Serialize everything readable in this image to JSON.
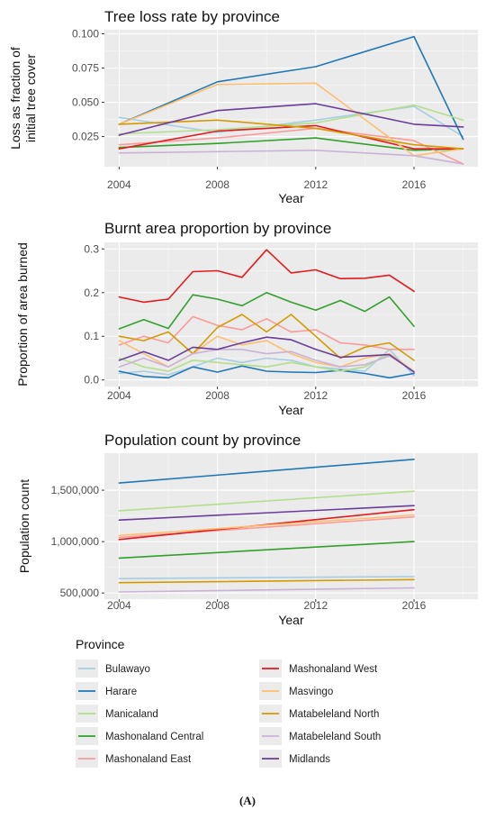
{
  "caption": "(A)",
  "legend": {
    "title": "Province",
    "items": [
      {
        "name": "Bulawayo",
        "color": "#a6cee3"
      },
      {
        "name": "Harare",
        "color": "#1f78b4"
      },
      {
        "name": "Manicaland",
        "color": "#b2df8a"
      },
      {
        "name": "Mashonaland Central",
        "color": "#33a02c"
      },
      {
        "name": "Mashonaland East",
        "color": "#fb9a99"
      },
      {
        "name": "Mashonaland West",
        "color": "#e31a1c"
      },
      {
        "name": "Masvingo",
        "color": "#fdbf6f"
      },
      {
        "name": "Matabeleland North",
        "color": "#d49a00"
      },
      {
        "name": "Matabeleland South",
        "color": "#cab2d6"
      },
      {
        "name": "Midlands",
        "color": "#6a3d9a"
      }
    ]
  },
  "chart_data": [
    {
      "type": "line",
      "title": "Tree loss rate by province",
      "xlabel": "Year",
      "ylabel": "Loss as fraction of initial tree cover",
      "xlim": [
        2003.4,
        2018.6
      ],
      "ylim": [
        0.003,
        0.103
      ],
      "x_ticks": [
        2004,
        2008,
        2012,
        2016
      ],
      "y_ticks": [
        0.025,
        0.05,
        0.075,
        0.1
      ],
      "y_tick_labels": [
        "0.025",
        "0.050",
        "0.075",
        "0.100"
      ],
      "x": [
        2004,
        2008,
        2012,
        2016,
        2018
      ],
      "series": [
        {
          "name": "Bulawayo",
          "values": [
            0.039,
            0.028,
            0.037,
            0.047,
            0.025
          ]
        },
        {
          "name": "Harare",
          "values": [
            0.034,
            0.065,
            0.076,
            0.098,
            0.023
          ]
        },
        {
          "name": "Manicaland",
          "values": [
            0.027,
            0.03,
            0.035,
            0.048,
            0.037
          ]
        },
        {
          "name": "Mashonaland Central",
          "values": [
            0.017,
            0.02,
            0.024,
            0.015,
            0.016
          ]
        },
        {
          "name": "Mashonaland East",
          "values": [
            0.019,
            0.024,
            0.031,
            0.022,
            0.005
          ]
        },
        {
          "name": "Mashonaland West",
          "values": [
            0.016,
            0.029,
            0.033,
            0.016,
            0.016
          ]
        },
        {
          "name": "Masvingo",
          "values": [
            0.034,
            0.063,
            0.064,
            0.011,
            0.016
          ]
        },
        {
          "name": "Matabeleland North",
          "values": [
            0.034,
            0.037,
            0.031,
            0.019,
            0.016
          ]
        },
        {
          "name": "Matabeleland South",
          "values": [
            0.013,
            0.014,
            0.015,
            0.011,
            0.005
          ]
        },
        {
          "name": "Midlands",
          "values": [
            0.026,
            0.044,
            0.049,
            0.034,
            0.032
          ]
        }
      ]
    },
    {
      "type": "line",
      "title": "Burnt area proportion by province",
      "xlabel": "Year",
      "ylabel": "Proportion of area burned",
      "xlim": [
        2003.4,
        2018.6
      ],
      "ylim": [
        -0.015,
        0.315
      ],
      "x_ticks": [
        2004,
        2008,
        2012,
        2016
      ],
      "y_ticks": [
        0,
        0.1,
        0.2,
        0.3
      ],
      "y_tick_labels": [
        "0.0",
        "0.1",
        "0.2",
        "0.3"
      ],
      "x": [
        2004,
        2005,
        2006,
        2007,
        2008,
        2009,
        2010,
        2011,
        2012,
        2013,
        2014,
        2015,
        2016
      ],
      "series": [
        {
          "name": "Bulawayo",
          "values": [
            0.015,
            0.02,
            0.012,
            0.03,
            0.05,
            0.04,
            0.05,
            0.045,
            0.03,
            0.025,
            0.02,
            0.07,
            0.01
          ]
        },
        {
          "name": "Harare",
          "values": [
            0.02,
            0.008,
            0.005,
            0.03,
            0.018,
            0.032,
            0.02,
            0.018,
            0.017,
            0.022,
            0.015,
            0.005,
            0.015
          ]
        },
        {
          "name": "Manicaland",
          "values": [
            0.05,
            0.03,
            0.02,
            0.045,
            0.04,
            0.035,
            0.03,
            0.04,
            0.03,
            0.02,
            0.03,
            0.06,
            0.02
          ]
        },
        {
          "name": "Mashonaland Central",
          "values": [
            0.117,
            0.138,
            0.118,
            0.195,
            0.185,
            0.17,
            0.2,
            0.178,
            0.16,
            0.182,
            0.157,
            0.19,
            0.123
          ]
        },
        {
          "name": "Mashonaland East",
          "values": [
            0.08,
            0.1,
            0.085,
            0.145,
            0.125,
            0.115,
            0.14,
            0.11,
            0.115,
            0.085,
            0.08,
            0.07,
            0.07
          ]
        },
        {
          "name": "Mashonaland West",
          "values": [
            0.19,
            0.178,
            0.185,
            0.248,
            0.25,
            0.235,
            0.298,
            0.245,
            0.252,
            0.232,
            0.233,
            0.24,
            0.203
          ]
        },
        {
          "name": "Masvingo",
          "values": [
            0.09,
            0.06,
            0.03,
            0.06,
            0.1,
            0.08,
            0.09,
            0.06,
            0.04,
            0.03,
            0.05,
            0.06,
            0.02
          ]
        },
        {
          "name": "Matabeleland North",
          "values": [
            0.1,
            0.09,
            0.11,
            0.06,
            0.12,
            0.15,
            0.11,
            0.15,
            0.1,
            0.05,
            0.075,
            0.085,
            0.045
          ]
        },
        {
          "name": "Matabeleland South",
          "values": [
            0.03,
            0.05,
            0.03,
            0.06,
            0.07,
            0.07,
            0.06,
            0.065,
            0.045,
            0.03,
            0.035,
            0.055,
            0.02
          ]
        },
        {
          "name": "Midlands",
          "values": [
            0.045,
            0.065,
            0.045,
            0.075,
            0.07,
            0.085,
            0.098,
            0.092,
            0.07,
            0.052,
            0.055,
            0.058,
            0.018
          ]
        }
      ]
    },
    {
      "type": "line",
      "title": "Population count by province",
      "xlabel": "Year",
      "ylabel": "Population count",
      "xlim": [
        2003.4,
        2018.6
      ],
      "ylim": [
        440000,
        1860000
      ],
      "x_ticks": [
        2004,
        2008,
        2012,
        2016
      ],
      "y_ticks": [
        500000,
        1000000,
        1500000
      ],
      "y_tick_labels": [
        "500,000",
        "1,000,000",
        "1,500,000"
      ],
      "x": [
        2004,
        2016
      ],
      "series": [
        {
          "name": "Bulawayo",
          "values": [
            640000,
            660000
          ]
        },
        {
          "name": "Harare",
          "values": [
            1570000,
            1800000
          ]
        },
        {
          "name": "Manicaland",
          "values": [
            1300000,
            1490000
          ]
        },
        {
          "name": "Mashonaland Central",
          "values": [
            840000,
            1000000
          ]
        },
        {
          "name": "Mashonaland East",
          "values": [
            1040000,
            1240000
          ]
        },
        {
          "name": "Mashonaland West",
          "values": [
            1020000,
            1310000
          ]
        },
        {
          "name": "Masvingo",
          "values": [
            1060000,
            1260000
          ]
        },
        {
          "name": "Matabeleland North",
          "values": [
            600000,
            630000
          ]
        },
        {
          "name": "Matabeleland South",
          "values": [
            510000,
            550000
          ]
        },
        {
          "name": "Midlands",
          "values": [
            1210000,
            1350000
          ]
        }
      ]
    }
  ]
}
